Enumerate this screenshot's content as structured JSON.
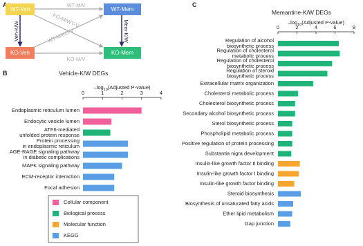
{
  "diagram": {
    "panel_label": "A",
    "nodes": [
      {
        "label": "WT-Veh",
        "color": "#f5d451"
      },
      {
        "label": "WT-Mem",
        "color": "#5b8ddc"
      },
      {
        "label": "KO-Veh",
        "color": "#ef7d5e"
      },
      {
        "label": "KO-Mem",
        "color": "#2cbe7a"
      }
    ],
    "edges": [
      {
        "label": "WT-M/V"
      },
      {
        "label": "KO-M/V"
      },
      {
        "label": "Veh-K/W"
      },
      {
        "label": "Mem-K/W"
      },
      {
        "label": "KO-M/WT-V"
      },
      {
        "label": "WT-M/KO-V"
      }
    ]
  },
  "chart_data": [
    {
      "type": "hbar",
      "panel_label": "B",
      "title": "Vehicle-K/W DEGs",
      "x_label": {
        "prefix": "–log",
        "sub": "10",
        "suffix": "(Adjusted P-value)"
      },
      "xlim": [
        0,
        4
      ],
      "xticks": [
        0,
        1,
        2,
        3,
        4
      ],
      "categories": [
        "Endoplasmic reticulum lumen",
        "Endocytic vesicle lumen",
        "ATF6-mediated\nunfolded protein response",
        "Protein processing\nin endoplasmic reticulum",
        "AGE-RAGE signaling pathway\nin diabetic complications",
        "MAPK signaling pathway",
        "ECM-receptor interaction",
        "Focal adhesion"
      ],
      "values": [
        3.0,
        1.45,
        1.4,
        2.3,
        2.3,
        2.0,
        1.6,
        1.6
      ],
      "colors": [
        "#f0609a",
        "#f0609a",
        "#1fb47a",
        "#5a9ee6",
        "#5a9ee6",
        "#5a9ee6",
        "#5a9ee6",
        "#5a9ee6"
      ],
      "legend": [
        {
          "name": "Cellular component",
          "color": "#f0609a"
        },
        {
          "name": "Biological process",
          "color": "#1fb47a"
        },
        {
          "name": "Molecular function",
          "color": "#f6a531"
        },
        {
          "name": "KEGG",
          "color": "#5a9ee6"
        }
      ]
    },
    {
      "type": "hbar",
      "panel_label": "C",
      "title": "Memantine-K/W DEGs",
      "x_label": {
        "prefix": "–log",
        "sub": "10",
        "suffix": "(Adjusted P-value)"
      },
      "xlim": [
        0,
        8
      ],
      "xticks": [
        0,
        2,
        4,
        6,
        8
      ],
      "categories": [
        "Regulation of alcohol\nbiosynthetic process",
        "Regulation of cholesterol\nmetabolic process",
        "Regulation of cholesterol\nbiosynthetic process",
        "Regulation of steroid\nbiosynthetic process",
        "Extracellular matrix organization",
        "Cholesterol metabolic process",
        "Cholesterol biosynthetic process",
        "Secondary alcohol biosynthetic process",
        "Sterol biosynthetic process",
        "Phospholipid metabolic process",
        "Positive regulation of protein processing",
        "Substantia nigra development",
        "Insulin-like growth factor II binding",
        "Insulin-like growth factor I binding",
        "Insulin-like growth factor binding",
        "Steroid biosynthesis",
        "Biosynthesis of unsaturated fatty acids",
        "Ether lipid metabolism",
        "Gap junction"
      ],
      "values": [
        6.4,
        6.5,
        5.7,
        5.2,
        3.7,
        2.1,
        1.8,
        1.8,
        1.5,
        1.5,
        1.5,
        1.4,
        2.3,
        2.2,
        1.7,
        2.4,
        1.6,
        1.5,
        1.3
      ],
      "colors": [
        "#1fb47a",
        "#1fb47a",
        "#1fb47a",
        "#1fb47a",
        "#1fb47a",
        "#1fb47a",
        "#1fb47a",
        "#1fb47a",
        "#1fb47a",
        "#1fb47a",
        "#1fb47a",
        "#1fb47a",
        "#f6a531",
        "#f6a531",
        "#f6a531",
        "#5a9ee6",
        "#5a9ee6",
        "#5a9ee6",
        "#5a9ee6"
      ]
    }
  ]
}
